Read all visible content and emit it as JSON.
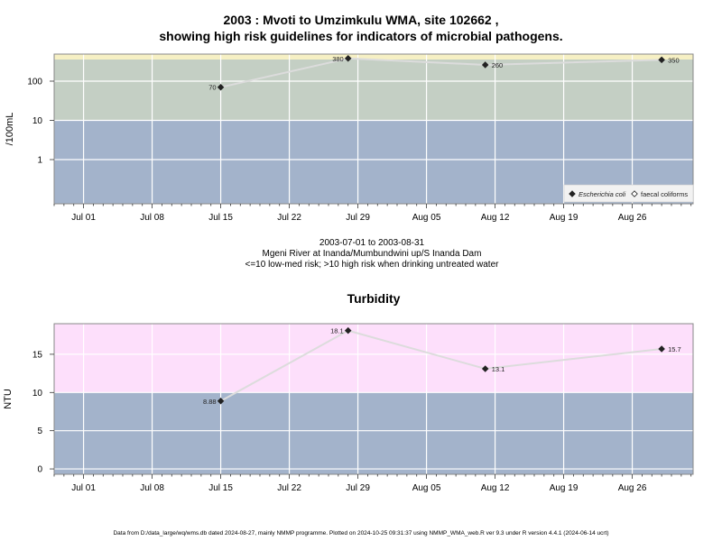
{
  "page": {
    "title1": "2003 : Mvoti to Umzimkulu WMA, site 102662 ,",
    "title2": "showing high risk guidelines for indicators of microbial pathogens.",
    "subtitle1": "2003-07-01 to 2003-08-31",
    "subtitle2": "Mgeni River at Inanda/Mumbundwini up/S Inanda Dam",
    "subtitle3": "<=10 low-med risk; >10 high risk when drinking untreated water",
    "footer": "Data from D:/data_large/wq/wms.db dated 2024-08-27, mainly NMMP programme. Plotted on 2024-10-25 09:31:37 using NMMP_WMA_web.R ver 9.3 under R version 4.4.1 (2024-06-14 ucrt)"
  },
  "colors": {
    "low_band": "#a3b3cb",
    "high_band_microbial": "#c4cfc4",
    "top_band_microbial": "#f6f0c4",
    "high_band_turbidity": "#fddffb",
    "line": "#dcdcdc",
    "grid": "#ffffff"
  },
  "chart_data": [
    {
      "type": "line",
      "title": "",
      "ylabel": "/100mL",
      "yscale": "log",
      "x_ticks": [
        "Jul 01",
        "Jul 08",
        "Jul 15",
        "Jul 22",
        "Jul 29",
        "Aug 05",
        "Aug 12",
        "Aug 19",
        "Aug 26"
      ],
      "y_ticks": [
        "1",
        "10",
        "100"
      ],
      "threshold": 10,
      "series": [
        {
          "name": "Escherichia coli",
          "marker": "filled-diamond",
          "x": [
            "2003-07-15",
            "2003-07-28",
            "2003-08-11",
            "2003-08-29"
          ],
          "values": [
            70,
            380,
            260,
            350
          ],
          "labels": [
            "70",
            "380",
            "260",
            "350"
          ]
        },
        {
          "name": "faecal coliforms",
          "marker": "open-diamond",
          "x": [],
          "values": [],
          "labels": []
        }
      ],
      "legend": "bottom-right",
      "grid": true
    },
    {
      "type": "line",
      "title": "Turbidity",
      "ylabel": "NTU",
      "x_ticks": [
        "Jul 01",
        "Jul 08",
        "Jul 15",
        "Jul 22",
        "Jul 29",
        "Aug 05",
        "Aug 12",
        "Aug 19",
        "Aug 26"
      ],
      "y_ticks": [
        "0",
        "5",
        "10",
        "15"
      ],
      "ylim": [
        -0.7,
        19
      ],
      "threshold": 10,
      "series": [
        {
          "x": [
            "2003-07-15",
            "2003-07-28",
            "2003-08-11",
            "2003-08-29"
          ],
          "values": [
            8.88,
            18.1,
            13.1,
            15.7
          ],
          "labels": [
            "8.88",
            "18.1",
            "13.1",
            "15.7"
          ]
        }
      ],
      "grid": true
    }
  ]
}
